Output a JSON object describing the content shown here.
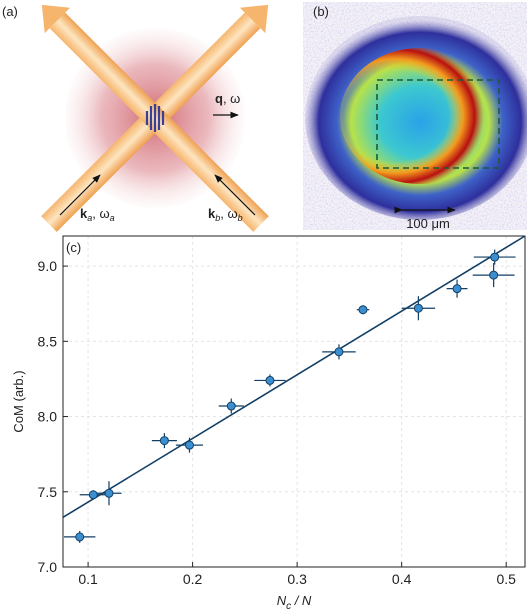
{
  "panels": {
    "a": {
      "label": "(a)",
      "q": "q",
      "q_rest": ", ω",
      "ka": [
        "k",
        "a",
        ", ω",
        "a"
      ],
      "kb": [
        "k",
        "b",
        ", ω",
        "b"
      ]
    },
    "b": {
      "label": "(b)",
      "scale": "100 μm"
    }
  },
  "chart_data": {
    "type": "scatter",
    "panel_label": "(c)",
    "x_label_parts": [
      "N",
      "c",
      " / N"
    ],
    "y_label": "CoM (arb.)",
    "x": [
      0.092,
      0.105,
      0.12,
      0.173,
      0.197,
      0.237,
      0.274,
      0.34,
      0.363,
      0.416,
      0.453,
      0.488,
      0.489
    ],
    "values": [
      7.2,
      7.48,
      7.49,
      7.84,
      7.81,
      8.07,
      8.24,
      8.43,
      8.71,
      8.72,
      8.85,
      8.94,
      9.06
    ],
    "x_errors": [
      0.015,
      0.013,
      0.012,
      0.012,
      0.013,
      0.012,
      0.015,
      0.016,
      0.006,
      0.016,
      0.01,
      0.02,
      0.02
    ],
    "y_errors": [
      0.04,
      0.03,
      0.08,
      0.05,
      0.05,
      0.05,
      0.04,
      0.05,
      0.03,
      0.08,
      0.06,
      0.08,
      0.05
    ],
    "color": "#3b8fd0",
    "fit": {
      "x": [
        0.076,
        0.518
      ],
      "values": [
        7.33,
        9.2
      ],
      "color": "#123f66"
    },
    "xlim": [
      0.076,
      0.518
    ],
    "ylim": [
      7.0,
      9.2
    ],
    "xticks": [
      0.1,
      0.2,
      0.3,
      0.4,
      0.5
    ],
    "yticks": [
      {
        "value": 7,
        "label": "7.0"
      },
      7.5,
      {
        "value": 8,
        "label": "8.0"
      },
      8.5,
      {
        "value": 9,
        "label": "9.0"
      }
    ],
    "grid": true
  }
}
